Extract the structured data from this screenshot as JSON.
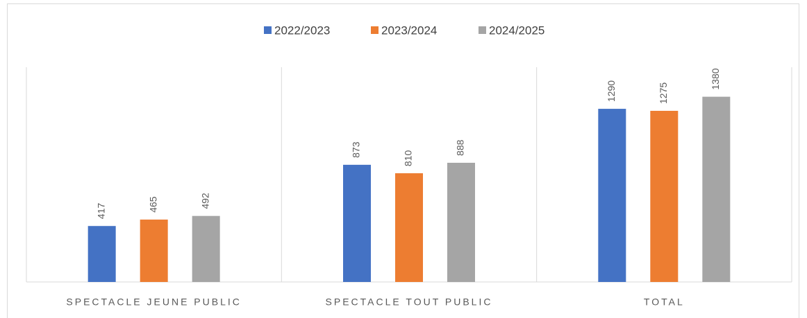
{
  "chart_data": {
    "type": "bar",
    "categories": [
      "SPECTACLE JEUNE PUBLIC",
      "SPECTACLE TOUT PUBLIC",
      "TOTAL"
    ],
    "series": [
      {
        "name": "2022/2023",
        "color": "#4472c4",
        "values": [
          417,
          873,
          1290
        ]
      },
      {
        "name": "2023/2024",
        "color": "#ed7d31",
        "values": [
          465,
          810,
          1275
        ]
      },
      {
        "name": "2024/2025",
        "color": "#a5a5a5",
        "values": [
          492,
          888,
          1380
        ]
      }
    ],
    "ylim": [
      0,
      1600
    ],
    "legend": "top"
  }
}
